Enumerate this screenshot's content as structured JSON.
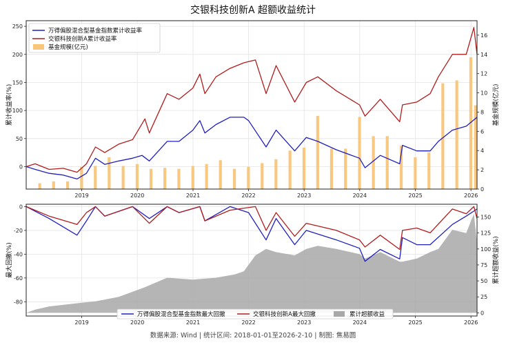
{
  "title": "交银科技创新A 超额收益统计",
  "footer": "数据来源: Wind | 统计区间: 2018-01-01至2026-2-10 | 制图: 焦易圆",
  "colors": {
    "index": "#1f1fbf",
    "fund": "#b01c1c",
    "size": "#f8c57a",
    "excess": "#a8a8a8",
    "right_axis": "#d05a10"
  },
  "chart_data": [
    {
      "type": "line",
      "panel": "top",
      "xlim": [
        "2018-01-01",
        "2026-02-10"
      ],
      "x_ticks": [
        "2019",
        "2020",
        "2021",
        "2022",
        "2023",
        "2024",
        "2025",
        "2026"
      ],
      "ylabel": "累计收益率(%)",
      "ylim": [
        -40,
        260
      ],
      "y_ticks": [
        0,
        50,
        100,
        150,
        200,
        250
      ],
      "y2label": "基金规模(亿元)",
      "y2lim": [
        0,
        17.5
      ],
      "y2_ticks": [
        0,
        2,
        4,
        6,
        8,
        10,
        12,
        14,
        16
      ],
      "legend_position": "top-left",
      "series": [
        {
          "name": "万得偏股混合型基金指数累计收益率",
          "color": "#1f1fbf",
          "points": [
            [
              "2018-01-01",
              0
            ],
            [
              "2018-03-01",
              -5
            ],
            [
              "2018-06-01",
              -12
            ],
            [
              "2018-09-01",
              -15
            ],
            [
              "2018-12-01",
              -22
            ],
            [
              "2019-02-01",
              -12
            ],
            [
              "2019-04-01",
              15
            ],
            [
              "2019-06-01",
              4
            ],
            [
              "2019-09-01",
              10
            ],
            [
              "2019-12-01",
              15
            ],
            [
              "2020-02-01",
              20
            ],
            [
              "2020-03-20",
              10
            ],
            [
              "2020-07-15",
              45
            ],
            [
              "2020-10-01",
              45
            ],
            [
              "2020-12-31",
              65
            ],
            [
              "2021-02-15",
              82
            ],
            [
              "2021-03-20",
              60
            ],
            [
              "2021-06-01",
              75
            ],
            [
              "2021-09-01",
              88
            ],
            [
              "2021-12-01",
              88
            ],
            [
              "2022-01-01",
              82
            ],
            [
              "2022-04-26",
              35
            ],
            [
              "2022-07-01",
              65
            ],
            [
              "2022-10-31",
              28
            ],
            [
              "2023-01-15",
              52
            ],
            [
              "2023-04-01",
              45
            ],
            [
              "2023-08-01",
              30
            ],
            [
              "2023-12-31",
              15
            ],
            [
              "2024-02-05",
              -2
            ],
            [
              "2024-05-15",
              20
            ],
            [
              "2024-09-20",
              5
            ],
            [
              "2024-10-08",
              38
            ],
            [
              "2025-01-10",
              28
            ],
            [
              "2025-04-08",
              28
            ],
            [
              "2025-06-01",
              45
            ],
            [
              "2025-09-01",
              65
            ],
            [
              "2025-12-01",
              72
            ],
            [
              "2026-02-10",
              88
            ]
          ]
        },
        {
          "name": "交银科技创新A累计收益率",
          "color": "#b01c1c",
          "points": [
            [
              "2018-01-01",
              0
            ],
            [
              "2018-03-01",
              5
            ],
            [
              "2018-06-01",
              -5
            ],
            [
              "2018-09-01",
              -3
            ],
            [
              "2018-12-01",
              -10
            ],
            [
              "2019-02-01",
              5
            ],
            [
              "2019-04-01",
              35
            ],
            [
              "2019-06-01",
              25
            ],
            [
              "2019-09-01",
              40
            ],
            [
              "2019-12-01",
              48
            ],
            [
              "2020-02-20",
              85
            ],
            [
              "2020-03-20",
              60
            ],
            [
              "2020-07-15",
              130
            ],
            [
              "2020-10-01",
              120
            ],
            [
              "2020-12-31",
              140
            ],
            [
              "2021-02-15",
              165
            ],
            [
              "2021-03-20",
              130
            ],
            [
              "2021-06-01",
              160
            ],
            [
              "2021-09-01",
              175
            ],
            [
              "2021-12-01",
              185
            ],
            [
              "2022-02-15",
              190
            ],
            [
              "2022-04-26",
              130
            ],
            [
              "2022-07-01",
              180
            ],
            [
              "2022-10-31",
              115
            ],
            [
              "2023-01-15",
              150
            ],
            [
              "2023-04-01",
              160
            ],
            [
              "2023-08-01",
              135
            ],
            [
              "2023-12-31",
              110
            ],
            [
              "2024-02-05",
              90
            ],
            [
              "2024-05-15",
              120
            ],
            [
              "2024-09-20",
              80
            ],
            [
              "2024-10-08",
              110
            ],
            [
              "2025-01-10",
              115
            ],
            [
              "2025-04-08",
              130
            ],
            [
              "2025-06-01",
              160
            ],
            [
              "2025-09-01",
              200
            ],
            [
              "2025-12-01",
              200
            ],
            [
              "2026-01-20",
              248
            ],
            [
              "2026-02-10",
              200
            ]
          ]
        }
      ],
      "bars": {
        "name": "基金规模(亿元)",
        "color": "#f8c57a",
        "axis": "right",
        "points": [
          [
            "2018-03-31",
            0.6
          ],
          [
            "2018-06-30",
            0.8
          ],
          [
            "2018-09-30",
            0.8
          ],
          [
            "2018-12-31",
            2.3
          ],
          [
            "2019-03-31",
            2.4
          ],
          [
            "2019-06-30",
            3.3
          ],
          [
            "2019-09-30",
            2.4
          ],
          [
            "2019-12-31",
            2.6
          ],
          [
            "2020-03-31",
            2.1
          ],
          [
            "2020-06-30",
            2.2
          ],
          [
            "2020-09-30",
            2.1
          ],
          [
            "2020-12-31",
            2.4
          ],
          [
            "2021-03-31",
            2.6
          ],
          [
            "2021-06-30",
            3.0
          ],
          [
            "2021-09-30",
            2.1
          ],
          [
            "2021-12-31",
            2.3
          ],
          [
            "2022-03-31",
            2.7
          ],
          [
            "2022-06-30",
            3.1
          ],
          [
            "2022-09-30",
            4.0
          ],
          [
            "2022-12-31",
            4.3
          ],
          [
            "2023-03-31",
            7.6
          ],
          [
            "2023-06-30",
            4.2
          ],
          [
            "2023-09-30",
            4.2
          ],
          [
            "2023-12-31",
            7.5
          ],
          [
            "2024-03-31",
            5.5
          ],
          [
            "2024-06-30",
            5.5
          ],
          [
            "2024-09-30",
            4.5
          ],
          [
            "2024-12-31",
            3.3
          ],
          [
            "2025-03-31",
            3.8
          ],
          [
            "2025-06-30",
            11.0
          ],
          [
            "2025-09-30",
            11.3
          ],
          [
            "2025-12-31",
            13.7
          ],
          [
            "2026-01-31",
            8.7
          ],
          [
            "2026-02-10",
            5.7
          ]
        ]
      }
    },
    {
      "type": "line",
      "panel": "bottom",
      "xlim": [
        "2018-01-01",
        "2026-02-10"
      ],
      "x_ticks": [
        "2019",
        "2020",
        "2021",
        "2022",
        "2023",
        "2024",
        "2025",
        "2026"
      ],
      "ylabel": "最大回撤(%)",
      "ylim": [
        -92,
        2
      ],
      "y_ticks": [
        -80,
        -60,
        -40,
        -20,
        0
      ],
      "y2label": "累计超额收益(%)",
      "y2lim": [
        -5,
        170
      ],
      "y2_ticks": [
        0,
        25,
        50,
        75,
        100,
        125,
        150
      ],
      "legend_position": "bottom-center",
      "series": [
        {
          "name": "万得偏股混合型基金指数最大回撤",
          "color": "#1f1fbf",
          "points": [
            [
              "2018-01-01",
              0
            ],
            [
              "2018-06-01",
              -10
            ],
            [
              "2018-12-01",
              -24
            ],
            [
              "2019-02-01",
              -12
            ],
            [
              "2019-04-01",
              0
            ],
            [
              "2019-06-01",
              -8
            ],
            [
              "2019-12-01",
              0
            ],
            [
              "2020-03-20",
              -10
            ],
            [
              "2020-07-15",
              0
            ],
            [
              "2020-10-01",
              -5
            ],
            [
              "2021-02-15",
              0
            ],
            [
              "2021-03-20",
              -12
            ],
            [
              "2021-09-01",
              0
            ],
            [
              "2022-01-01",
              -5
            ],
            [
              "2022-04-26",
              -28
            ],
            [
              "2022-07-01",
              -10
            ],
            [
              "2022-10-31",
              -32
            ],
            [
              "2023-01-15",
              -20
            ],
            [
              "2023-08-01",
              -28
            ],
            [
              "2023-12-31",
              -35
            ],
            [
              "2024-02-05",
              -46
            ],
            [
              "2024-05-15",
              -36
            ],
            [
              "2024-09-20",
              -44
            ],
            [
              "2024-10-08",
              -26
            ],
            [
              "2025-01-10",
              -32
            ],
            [
              "2025-04-08",
              -32
            ],
            [
              "2025-09-01",
              -15
            ],
            [
              "2025-12-01",
              -8
            ],
            [
              "2026-02-10",
              -2
            ]
          ]
        },
        {
          "name": "交银科技创新A最大回撤",
          "color": "#b01c1c",
          "points": [
            [
              "2018-01-01",
              0
            ],
            [
              "2018-06-01",
              -8
            ],
            [
              "2018-12-01",
              -15
            ],
            [
              "2019-02-01",
              -5
            ],
            [
              "2019-04-01",
              0
            ],
            [
              "2019-06-01",
              -8
            ],
            [
              "2019-12-01",
              0
            ],
            [
              "2020-03-20",
              -14
            ],
            [
              "2020-07-15",
              0
            ],
            [
              "2020-10-01",
              -5
            ],
            [
              "2021-02-15",
              0
            ],
            [
              "2021-03-20",
              -12
            ],
            [
              "2021-09-01",
              -3
            ],
            [
              "2022-02-15",
              0
            ],
            [
              "2022-04-26",
              -20
            ],
            [
              "2022-07-01",
              -5
            ],
            [
              "2022-10-31",
              -25
            ],
            [
              "2023-01-15",
              -14
            ],
            [
              "2023-08-01",
              -20
            ],
            [
              "2023-12-31",
              -28
            ],
            [
              "2024-02-05",
              -34
            ],
            [
              "2024-05-15",
              -24
            ],
            [
              "2024-09-20",
              -36
            ],
            [
              "2024-10-08",
              -20
            ],
            [
              "2025-01-10",
              -18
            ],
            [
              "2025-04-08",
              -22
            ],
            [
              "2025-09-01",
              -2
            ],
            [
              "2025-12-01",
              -6
            ],
            [
              "2026-01-20",
              0
            ],
            [
              "2026-02-10",
              -10
            ]
          ]
        }
      ],
      "area": {
        "name": "累计超额收益",
        "color": "#a8a8a8",
        "axis": "right",
        "points": [
          [
            "2018-01-01",
            0
          ],
          [
            "2018-03-01",
            5
          ],
          [
            "2018-06-01",
            10
          ],
          [
            "2018-12-01",
            15
          ],
          [
            "2019-04-01",
            18
          ],
          [
            "2019-09-01",
            25
          ],
          [
            "2020-02-20",
            40
          ],
          [
            "2020-07-15",
            55
          ],
          [
            "2020-12-31",
            52
          ],
          [
            "2021-06-01",
            55
          ],
          [
            "2021-10-01",
            60
          ],
          [
            "2021-12-01",
            65
          ],
          [
            "2022-02-15",
            90
          ],
          [
            "2022-04-26",
            100
          ],
          [
            "2022-07-01",
            95
          ],
          [
            "2022-10-31",
            90
          ],
          [
            "2023-01-15",
            100
          ],
          [
            "2023-04-01",
            105
          ],
          [
            "2023-08-01",
            100
          ],
          [
            "2023-12-31",
            92
          ],
          [
            "2024-02-05",
            85
          ],
          [
            "2024-05-15",
            95
          ],
          [
            "2024-09-20",
            80
          ],
          [
            "2024-10-08",
            80
          ],
          [
            "2025-01-10",
            85
          ],
          [
            "2025-04-08",
            95
          ],
          [
            "2025-06-01",
            100
          ],
          [
            "2025-09-01",
            130
          ],
          [
            "2025-12-01",
            125
          ],
          [
            "2026-01-20",
            155
          ],
          [
            "2026-02-10",
            110
          ]
        ]
      }
    }
  ]
}
